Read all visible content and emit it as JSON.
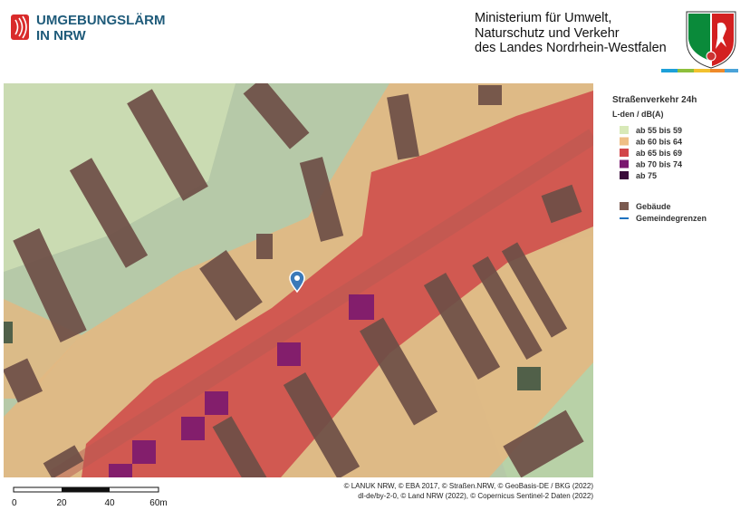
{
  "header": {
    "title_lines": [
      "UMGEBUNGSLÄRM",
      "IN NRW"
    ],
    "ministry_lines": [
      "Ministerium für Umwelt,",
      "Naturschutz und Verkehr",
      "des Landes Nordrhein-Westfalen"
    ]
  },
  "legend": {
    "title": "Straßenverkehr 24h",
    "unit": "L-den / dB(A)",
    "noise_classes": [
      {
        "label": "ab 55 bis 59",
        "color": "#d8e9b8"
      },
      {
        "label": "ab 60 bis 64",
        "color": "#efbf86"
      },
      {
        "label": "ab 65 bis 69",
        "color": "#d2464a"
      },
      {
        "label": "ab 70 bis 74",
        "color": "#7a176f"
      },
      {
        "label": "ab 75",
        "color": "#3b0c3b"
      }
    ],
    "layers": [
      {
        "label": "Gebäude",
        "color": "#7b5a50",
        "kind": "area"
      },
      {
        "label": "Gemeindegrenzen",
        "color": "#1d72c0",
        "kind": "line"
      }
    ]
  },
  "scale_bar": {
    "labels": [
      "0",
      "20",
      "40",
      "60m"
    ]
  },
  "attribution": [
    "© LANUK NRW, © EBA 2017, © Straßen.NRW, © GeoBasis-DE / BKG (2022)",
    "dl-de/by-2-0, © Land NRW (2022), © Copernicus Sentinel-2 Daten (2022)"
  ]
}
